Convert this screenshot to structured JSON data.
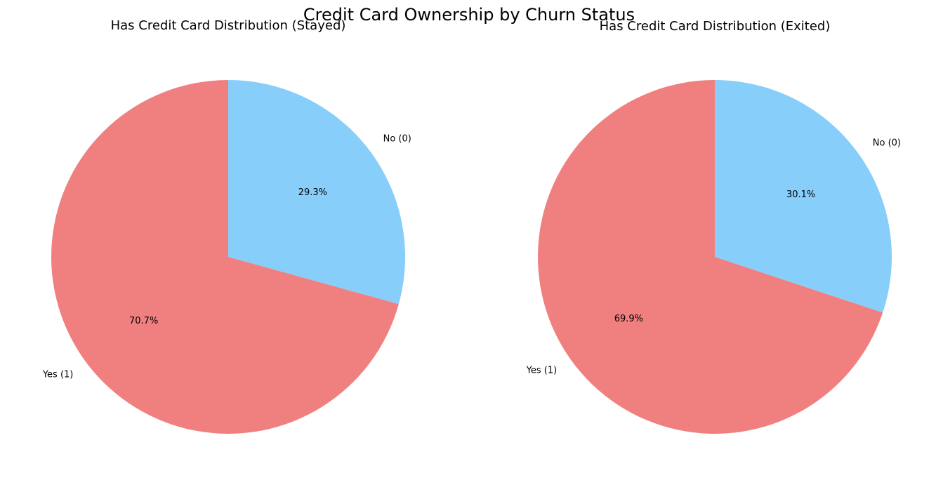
{
  "figure": {
    "title": "Credit Card Ownership by Churn Status"
  },
  "chart_data": [
    {
      "type": "pie",
      "title": "Has Credit Card Distribution (Stayed)",
      "start_angle_deg": 90,
      "direction": "clockwise",
      "slices": [
        {
          "label": "No (0)",
          "value": 29.3,
          "pct_label": "29.3%",
          "color": "#87CEFA"
        },
        {
          "label": "Yes (1)",
          "value": 70.7,
          "pct_label": "70.7%",
          "color": "#F08080"
        }
      ]
    },
    {
      "type": "pie",
      "title": "Has Credit Card Distribution (Exited)",
      "start_angle_deg": 90,
      "direction": "clockwise",
      "slices": [
        {
          "label": "No (0)",
          "value": 30.1,
          "pct_label": "30.1%",
          "color": "#87CEFA"
        },
        {
          "label": "Yes (1)",
          "value": 69.9,
          "pct_label": "69.9%",
          "color": "#F08080"
        }
      ]
    }
  ]
}
